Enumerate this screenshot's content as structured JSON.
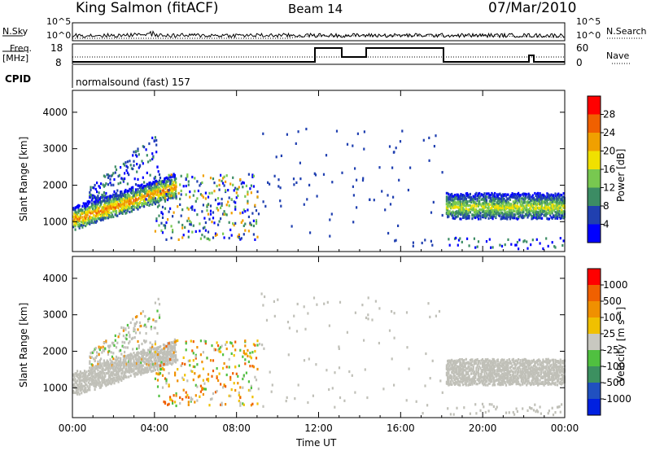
{
  "header": {
    "station": "King Salmon (fitACF)",
    "beam": "Beam 14",
    "date": "07/Mar/2010"
  },
  "top_panels": {
    "nsky_label": "N.Sky",
    "nsearch_label": "N.Search",
    "noise_ticks": [
      "10^5",
      "10^0"
    ],
    "freq_label": "Freq.",
    "freq_unit": "[MHz]",
    "freq_ticks": [
      "18",
      "8"
    ],
    "nave_label": "Nave",
    "nave_ticks": [
      "60",
      "0"
    ],
    "cpid_label": "CPID",
    "cpid_value": "normalsound (fast) 157"
  },
  "chart_data": [
    {
      "type": "heatmap",
      "title": "",
      "parameter": "Power",
      "xlabel": "",
      "ylabel": "Slant Range [km]",
      "colorbar_label": "Power [dB]",
      "x_ticks": [
        "00:00",
        "04:00",
        "08:00",
        "12:00",
        "16:00",
        "20:00",
        "00:00"
      ],
      "y_ticks": [
        1000,
        2000,
        3000,
        4000
      ],
      "xlim_hours": [
        0,
        24
      ],
      "ylim_km": [
        180,
        4600
      ],
      "colorbar_ticks": [
        4,
        8,
        12,
        16,
        20,
        24,
        28
      ],
      "colorbar_range": [
        0,
        32
      ],
      "colors": [
        "#0000ff",
        "#2040b0",
        "#3c8c64",
        "#78c850",
        "#f0e000",
        "#f0a000",
        "#f06000",
        "#ff0000"
      ]
    },
    {
      "type": "heatmap",
      "title": "",
      "parameter": "Velocity",
      "xlabel": "Time UT",
      "ylabel": "Slant Range [km]",
      "colorbar_label": "Velocity [m s⁻¹]",
      "x_ticks": [
        "00:00",
        "04:00",
        "08:00",
        "12:00",
        "16:00",
        "20:00",
        "00:00"
      ],
      "y_ticks": [
        1000,
        2000,
        3000,
        4000
      ],
      "xlim_hours": [
        0,
        24
      ],
      "ylim_km": [
        180,
        4600
      ],
      "colorbar_ticks": [
        "1000",
        "500",
        "100",
        "25",
        "-25",
        "-100",
        "-500",
        "-1000"
      ],
      "colors": [
        "#0020e0",
        "#2050c0",
        "#3c9060",
        "#50c040",
        "#c8c8c0",
        "#f0c000",
        "#f09000",
        "#f06000",
        "#ff0000"
      ],
      "ground_scatter_color": "#c0c0b8"
    }
  ]
}
